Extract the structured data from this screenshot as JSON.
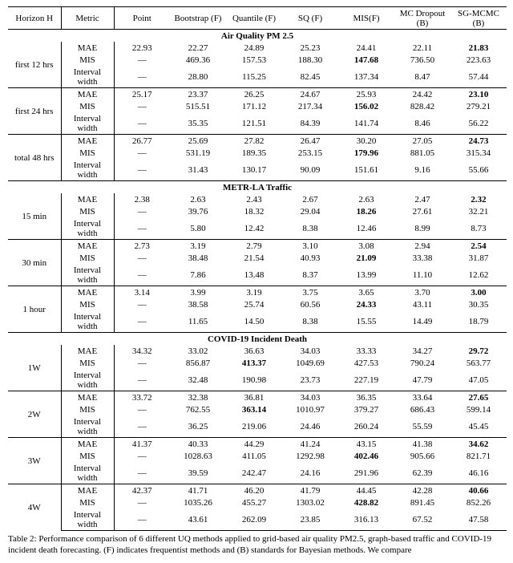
{
  "header": {
    "cols": [
      "Horizon H",
      "Metric",
      "Point",
      "Bootstrap (F)",
      "Quantile (F)",
      "SQ (F)",
      "MIS(F)",
      "MC Dropout (B)",
      "SG-MCMC (B)"
    ]
  },
  "sections": [
    {
      "title": "Air Quality PM 2.5",
      "groups": [
        {
          "horizon": "first 12 hrs",
          "rows": [
            {
              "metric": "MAE",
              "vals": [
                "22.93",
                "22.27",
                "24.89",
                "25.23",
                "24.41",
                "22.11",
                "21.83"
              ],
              "boldIdx": 6
            },
            {
              "metric": "MIS",
              "vals": [
                "—",
                "469.36",
                "157.53",
                "188.30",
                "147.68",
                "736.50",
                "223.63"
              ],
              "boldIdx": 4
            },
            {
              "metric": "Interval width",
              "vals": [
                "—",
                "28.80",
                "115.25",
                "82.45",
                "137.34",
                "8.47",
                "57.44"
              ]
            }
          ]
        },
        {
          "horizon": "first 24 hrs",
          "rows": [
            {
              "metric": "MAE",
              "vals": [
                "25.17",
                "23.37",
                "26.25",
                "24.67",
                "25.93",
                "24.42",
                "23.10"
              ],
              "boldIdx": 6
            },
            {
              "metric": "MIS",
              "vals": [
                "—",
                "515.51",
                "171.12",
                "217.34",
                "156.02",
                "828.42",
                "279.21"
              ],
              "boldIdx": 4
            },
            {
              "metric": "Interval width",
              "vals": [
                "—",
                "35.35",
                "121.51",
                "84.39",
                "141.74",
                "8.46",
                "56.22"
              ]
            }
          ]
        },
        {
          "horizon": "total 48 hrs",
          "rows": [
            {
              "metric": "MAE",
              "vals": [
                "26.77",
                "25.69",
                "27.82",
                "26.47",
                "30.20",
                "27.05",
                "24.73"
              ],
              "boldIdx": 6
            },
            {
              "metric": "MIS",
              "vals": [
                "—",
                "531.19",
                "189.35",
                "253.15",
                "179.96",
                "881.05",
                "315.34"
              ],
              "boldIdx": 4
            },
            {
              "metric": "Interval width",
              "vals": [
                "—",
                "31.43",
                "130.17",
                "90.09",
                "151.61",
                "9.16",
                "55.66"
              ]
            }
          ]
        }
      ]
    },
    {
      "title": "METR-LA Traffic",
      "groups": [
        {
          "horizon": "15 min",
          "rows": [
            {
              "metric": "MAE",
              "vals": [
                "2.38",
                "2.63",
                "2.43",
                "2.67",
                "2.63",
                "2.47",
                "2.32"
              ],
              "boldIdx": 6
            },
            {
              "metric": "MIS",
              "vals": [
                "—",
                "39.76",
                "18.32",
                "29.04",
                "18.26",
                "27.61",
                "32.21"
              ],
              "boldIdx": 4
            },
            {
              "metric": "Interval width",
              "vals": [
                "—",
                "5.80",
                "12.42",
                "8.38",
                "12.46",
                "8.99",
                "8.73"
              ]
            }
          ]
        },
        {
          "horizon": "30 min",
          "rows": [
            {
              "metric": "MAE",
              "vals": [
                "2.73",
                "3.19",
                "2.79",
                "3.10",
                "3.08",
                "2.94",
                "2.54"
              ],
              "boldIdx": 6
            },
            {
              "metric": "MIS",
              "vals": [
                "—",
                "38.48",
                "21.54",
                "40.93",
                "21.09",
                "33.38",
                "31.87"
              ],
              "boldIdx": 4
            },
            {
              "metric": "Interval width",
              "vals": [
                "—",
                "7.86",
                "13.48",
                "8.37",
                "13.99",
                "11.10",
                "12.62"
              ]
            }
          ]
        },
        {
          "horizon": "1 hour",
          "rows": [
            {
              "metric": "MAE",
              "vals": [
                "3.14",
                "3.99",
                "3.19",
                "3.75",
                "3.65",
                "3.70",
                "3.00"
              ],
              "boldIdx": 6
            },
            {
              "metric": "MIS",
              "vals": [
                "—",
                "38.58",
                "25.74",
                "60.56",
                "24.33",
                "43.11",
                "30.35"
              ],
              "boldIdx": 4
            },
            {
              "metric": "Interval width",
              "vals": [
                "—",
                "11.65",
                "14.50",
                "8.38",
                "15.55",
                "14.49",
                "18.79"
              ]
            }
          ]
        }
      ]
    },
    {
      "title": "COVID-19 Incident Death",
      "groups": [
        {
          "horizon": "1W",
          "rows": [
            {
              "metric": "MAE",
              "vals": [
                "34.32",
                "33.02",
                "36.63",
                "34.03",
                "33.33",
                "34.27",
                "29.72"
              ],
              "boldIdx": 6
            },
            {
              "metric": "MIS",
              "vals": [
                "—",
                "856.87",
                "413.37",
                "1049.69",
                "427.53",
                "790.24",
                "563.77"
              ],
              "boldIdx": 2
            },
            {
              "metric": "Interval width",
              "vals": [
                "—",
                "32.48",
                "190.98",
                "23.73",
                "227.19",
                "47.79",
                "47.05"
              ]
            }
          ]
        },
        {
          "horizon": "2W",
          "rows": [
            {
              "metric": "MAE",
              "vals": [
                "33.72",
                "32.38",
                "36.81",
                "34.03",
                "36.35",
                "33.64",
                "27.65"
              ],
              "boldIdx": 6
            },
            {
              "metric": "MIS",
              "vals": [
                "—",
                "762.55",
                "363.14",
                "1010.97",
                "379.27",
                "686.43",
                "599.14"
              ],
              "boldIdx": 2
            },
            {
              "metric": "Interval width",
              "vals": [
                "—",
                "36.25",
                "219.06",
                "24.46",
                "260.24",
                "55.59",
                "45.45"
              ]
            }
          ]
        },
        {
          "horizon": "3W",
          "rows": [
            {
              "metric": "MAE",
              "vals": [
                "41.37",
                "40.33",
                "44.29",
                "41.24",
                "43.15",
                "41.38",
                "34.62"
              ],
              "boldIdx": 6
            },
            {
              "metric": "MIS",
              "vals": [
                "—",
                "1028.63",
                "411.05",
                "1292.98",
                "402.46",
                "905.66",
                "821.71"
              ],
              "boldIdx": 4
            },
            {
              "metric": "Interval width",
              "vals": [
                "—",
                "39.59",
                "242.47",
                "24.16",
                "291.96",
                "62.39",
                "46.16"
              ]
            }
          ]
        },
        {
          "horizon": "4W",
          "rows": [
            {
              "metric": "MAE",
              "vals": [
                "42.37",
                "41.71",
                "46.20",
                "41.79",
                "44.45",
                "42.28",
                "40.66"
              ],
              "boldIdx": 6
            },
            {
              "metric": "MIS",
              "vals": [
                "—",
                "1035.26",
                "455.27",
                "1303.02",
                "428.82",
                "891.45",
                "852.26"
              ],
              "boldIdx": 4
            },
            {
              "metric": "Interval width",
              "vals": [
                "—",
                "43.61",
                "262.09",
                "23.85",
                "316.13",
                "67.52",
                "47.58"
              ]
            }
          ]
        }
      ]
    }
  ],
  "caption": "Table 2: Performance comparison of 6 different UQ methods applied to grid-based air quality PM2.5, graph-based traffic and COVID-19 incident death forecasting. (F) indicates frequentist methods and (B) standards for Bayesian methods. We compare"
}
